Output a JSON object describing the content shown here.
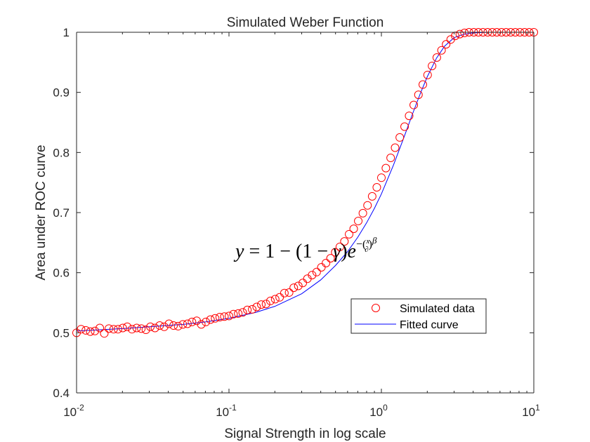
{
  "chart_data": {
    "type": "scatter",
    "title": "Simulated Weber Function",
    "xlabel": "Signal Strength in log scale",
    "ylabel": "Area under ROC curve",
    "xscale": "log",
    "xlim": [
      0.01,
      10
    ],
    "ylim": [
      0.4,
      1
    ],
    "x_ticks": [
      {
        "base": "10",
        "exp": "-2",
        "value": 0.01
      },
      {
        "base": "10",
        "exp": "-1",
        "value": 0.1
      },
      {
        "base": "10",
        "exp": "0",
        "value": 1
      },
      {
        "base": "10",
        "exp": "1",
        "value": 10
      }
    ],
    "y_ticks": [
      "0.4",
      "0.5",
      "0.6",
      "0.7",
      "0.8",
      "0.9",
      "1"
    ],
    "grid": false,
    "legend_position": "right",
    "annotation": {
      "parts": [
        "y",
        " = 1 − (1 − ",
        "γ",
        ")",
        "e",
        "−(",
        "x",
        "∂",
        ")",
        "β"
      ]
    },
    "series": [
      {
        "name": "Simulated data",
        "marker": "circle",
        "color": "#ff0000",
        "x": [
          0.01,
          0.0107,
          0.0115,
          0.0123,
          0.0132,
          0.0142,
          0.0152,
          0.0163,
          0.0175,
          0.0187,
          0.0201,
          0.0215,
          0.0231,
          0.0248,
          0.0266,
          0.0285,
          0.0305,
          0.0327,
          0.0351,
          0.0376,
          0.0404,
          0.0433,
          0.0464,
          0.0498,
          0.0534,
          0.0572,
          0.0614,
          0.0658,
          0.0705,
          0.0756,
          0.0811,
          0.087,
          0.0933,
          0.1,
          0.107,
          0.115,
          0.123,
          0.132,
          0.142,
          0.152,
          0.163,
          0.175,
          0.187,
          0.201,
          0.215,
          0.231,
          0.248,
          0.266,
          0.285,
          0.305,
          0.327,
          0.351,
          0.376,
          0.404,
          0.433,
          0.464,
          0.498,
          0.534,
          0.572,
          0.614,
          0.658,
          0.705,
          0.756,
          0.811,
          0.87,
          0.933,
          1.0,
          1.07,
          1.15,
          1.23,
          1.32,
          1.42,
          1.52,
          1.63,
          1.75,
          1.87,
          2.01,
          2.15,
          2.31,
          2.48,
          2.66,
          2.85,
          3.05,
          3.27,
          3.51,
          3.76,
          4.04,
          4.33,
          4.64,
          4.98,
          5.34,
          5.72,
          6.14,
          6.58,
          7.05,
          7.56,
          8.11,
          8.7,
          9.33,
          10.0
        ],
        "y": [
          0.5,
          0.506,
          0.504,
          0.502,
          0.503,
          0.508,
          0.499,
          0.507,
          0.506,
          0.506,
          0.508,
          0.51,
          0.506,
          0.508,
          0.507,
          0.505,
          0.51,
          0.508,
          0.512,
          0.51,
          0.515,
          0.512,
          0.511,
          0.514,
          0.515,
          0.518,
          0.52,
          0.514,
          0.518,
          0.522,
          0.524,
          0.526,
          0.527,
          0.528,
          0.531,
          0.532,
          0.534,
          0.538,
          0.539,
          0.543,
          0.547,
          0.548,
          0.553,
          0.556,
          0.559,
          0.566,
          0.567,
          0.575,
          0.578,
          0.583,
          0.59,
          0.596,
          0.601,
          0.609,
          0.616,
          0.624,
          0.634,
          0.643,
          0.652,
          0.664,
          0.673,
          0.686,
          0.699,
          0.712,
          0.727,
          0.742,
          0.758,
          0.774,
          0.791,
          0.808,
          0.825,
          0.843,
          0.861,
          0.879,
          0.896,
          0.913,
          0.929,
          0.944,
          0.958,
          0.97,
          0.98,
          0.988,
          0.994,
          0.997,
          0.999,
          1.0,
          1.0,
          1.0,
          1.0,
          1.0,
          1.0,
          1.0,
          1.0,
          1.0,
          1.0,
          1.0,
          1.0,
          1.0,
          1.0,
          1.0
        ]
      },
      {
        "name": "Fitted curve",
        "marker": "line",
        "color": "#0000ff",
        "x": [
          0.01,
          0.02,
          0.03,
          0.05,
          0.07,
          0.1,
          0.15,
          0.2,
          0.3,
          0.4,
          0.5,
          0.6,
          0.7,
          0.8,
          0.9,
          1.0,
          1.2,
          1.4,
          1.6,
          1.8,
          2.0,
          2.3,
          2.6,
          3.0,
          3.5,
          4.0,
          5.0,
          6.0,
          8.0,
          10.0
        ],
        "y": [
          0.503,
          0.507,
          0.51,
          0.514,
          0.518,
          0.524,
          0.534,
          0.544,
          0.565,
          0.588,
          0.612,
          0.635,
          0.659,
          0.683,
          0.707,
          0.731,
          0.779,
          0.824,
          0.864,
          0.898,
          0.926,
          0.957,
          0.977,
          0.991,
          0.997,
          0.999,
          1.0,
          1.0,
          1.0,
          1.0
        ]
      }
    ]
  }
}
